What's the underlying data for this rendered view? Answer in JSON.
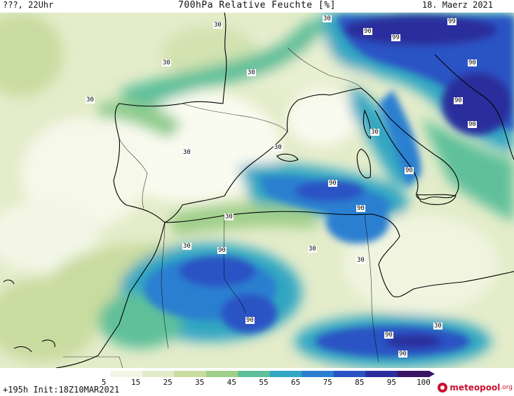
{
  "header": {
    "left": "???, 22Uhr",
    "title": "700hPa Relative Feuchte [%]",
    "date": "18. Maerz 2021"
  },
  "legend": {
    "ticks": [
      "5",
      "15",
      "25",
      "35",
      "45",
      "55",
      "65",
      "75",
      "85",
      "95",
      "100"
    ],
    "colors": [
      "#ffffff",
      "#f3f6e6",
      "#e2ebc8",
      "#c9dca0",
      "#9fcf8a",
      "#5ec09a",
      "#31a6c2",
      "#2c7fd0",
      "#2a52c4",
      "#2a2e9c",
      "#3a1566"
    ]
  },
  "footer": {
    "init": "+195h Init:18Z10MAR2021",
    "brand": "meteopool",
    "brand_suffix": ".org"
  },
  "contour_labels": [
    {
      "text": "30"
    },
    {
      "text": "30"
    },
    {
      "text": "30"
    },
    {
      "text": "30"
    },
    {
      "text": "30"
    },
    {
      "text": "30"
    },
    {
      "text": "30"
    },
    {
      "text": "30"
    },
    {
      "text": "30"
    },
    {
      "text": "30"
    },
    {
      "text": "30"
    },
    {
      "text": "30"
    },
    {
      "text": "30"
    },
    {
      "text": "90"
    },
    {
      "text": "99"
    },
    {
      "text": "99"
    },
    {
      "text": "90"
    },
    {
      "text": "90"
    },
    {
      "text": "90"
    },
    {
      "text": "90"
    },
    {
      "text": "90"
    },
    {
      "text": "90"
    },
    {
      "text": "90"
    },
    {
      "text": "90"
    },
    {
      "text": "90"
    },
    {
      "text": "90"
    }
  ]
}
